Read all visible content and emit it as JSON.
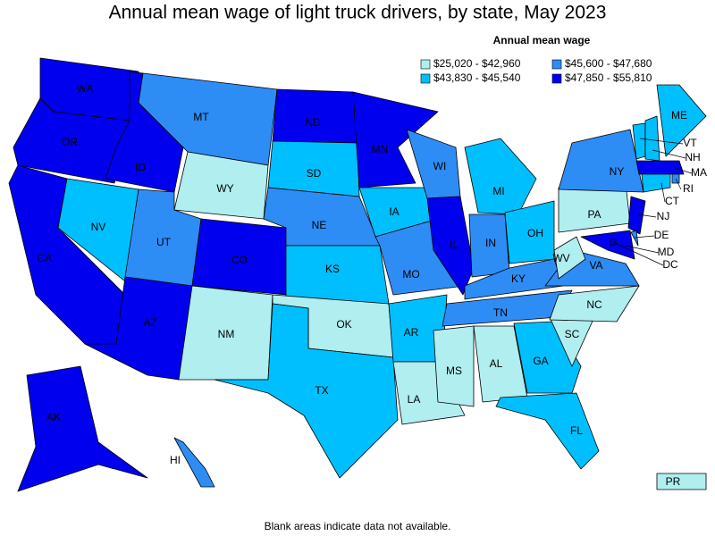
{
  "title": "Annual mean wage of light truck drivers, by state, May 2023",
  "legend": {
    "title": "Annual mean wage",
    "items": [
      {
        "label": "$25,020 - $42,960",
        "color": "#b0eef0"
      },
      {
        "label": "$43,830 - $45,540",
        "color": "#00bfff"
      },
      {
        "label": "$45,600 - $47,680",
        "color": "#2e8cf5"
      },
      {
        "label": "$47,850 - $55,810",
        "color": "#0000ee"
      }
    ]
  },
  "states": [
    {
      "label": "WA",
      "color": "#0000ee"
    },
    {
      "label": "OR",
      "color": "#0000ee"
    },
    {
      "label": "CA",
      "color": "#0000ee"
    },
    {
      "label": "ID",
      "color": "#0000ee"
    },
    {
      "label": "NV",
      "color": "#00bfff"
    },
    {
      "label": "MT",
      "color": "#2e8cf5"
    },
    {
      "label": "WY",
      "color": "#b0eef0"
    },
    {
      "label": "UT",
      "color": "#2e8cf5"
    },
    {
      "label": "AZ",
      "color": "#0000ee"
    },
    {
      "label": "CO",
      "color": "#0000ee"
    },
    {
      "label": "NM",
      "color": "#b0eef0"
    },
    {
      "label": "ND",
      "color": "#0000ee"
    },
    {
      "label": "SD",
      "color": "#00bfff"
    },
    {
      "label": "NE",
      "color": "#2e8cf5"
    },
    {
      "label": "KS",
      "color": "#00bfff"
    },
    {
      "label": "OK",
      "color": "#b0eef0"
    },
    {
      "label": "TX",
      "color": "#00bfff"
    },
    {
      "label": "MN",
      "color": "#0000ee"
    },
    {
      "label": "IA",
      "color": "#00bfff"
    },
    {
      "label": "MO",
      "color": "#2e8cf5"
    },
    {
      "label": "AR",
      "color": "#00bfff"
    },
    {
      "label": "LA",
      "color": "#b0eef0"
    },
    {
      "label": "WI",
      "color": "#2e8cf5"
    },
    {
      "label": "IL",
      "color": "#0000ee"
    },
    {
      "label": "MI",
      "color": "#00bfff"
    },
    {
      "label": "IN",
      "color": "#2e8cf5"
    },
    {
      "label": "OH",
      "color": "#00bfff"
    },
    {
      "label": "KY",
      "color": "#2e8cf5"
    },
    {
      "label": "TN",
      "color": "#2e8cf5"
    },
    {
      "label": "MS",
      "color": "#b0eef0"
    },
    {
      "label": "AL",
      "color": "#b0eef0"
    },
    {
      "label": "GA",
      "color": "#00bfff"
    },
    {
      "label": "FL",
      "color": "#00bfff"
    },
    {
      "label": "SC",
      "color": "#b0eef0"
    },
    {
      "label": "NC",
      "color": "#b0eef0"
    },
    {
      "label": "VA",
      "color": "#2e8cf5"
    },
    {
      "label": "WV",
      "color": "#b0eef0"
    },
    {
      "label": "PA",
      "color": "#b0eef0"
    },
    {
      "label": "NY",
      "color": "#2e8cf5"
    },
    {
      "label": "VT",
      "color": "#00bfff"
    },
    {
      "label": "NH",
      "color": "#00bfff"
    },
    {
      "label": "ME",
      "color": "#00bfff"
    },
    {
      "label": "MA",
      "color": "#0000ee"
    },
    {
      "label": "RI",
      "color": "#2e8cf5"
    },
    {
      "label": "CT",
      "color": "#00bfff"
    },
    {
      "label": "NJ",
      "color": "#0000ee"
    },
    {
      "label": "DE",
      "color": "#2e8cf5"
    },
    {
      "label": "MD",
      "color": "#0000ee"
    },
    {
      "label": "DC",
      "color": "#0000ee"
    },
    {
      "label": "AK",
      "color": "#0000ee"
    },
    {
      "label": "HI",
      "color": "#2e8cf5"
    },
    {
      "label": "PR",
      "color": "#b0eef0"
    }
  ],
  "note": "Blank areas indicate data not available."
}
